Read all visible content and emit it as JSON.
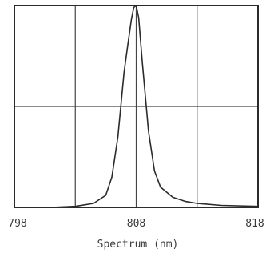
{
  "chart_data": {
    "type": "line",
    "title": "",
    "xlabel": "Spectrum (nm)",
    "ylabel": "",
    "xlim": [
      798,
      818
    ],
    "ylim": [
      0,
      1
    ],
    "x_ticks": [
      798,
      808,
      818
    ],
    "x_tick_labels": [
      "798",
      "808",
      "818"
    ],
    "grid": true,
    "series": [
      {
        "x": [
          798,
          801,
          803,
          804.5,
          805.5,
          806,
          806.5,
          807,
          807.3,
          807.6,
          807.8,
          808,
          808.2,
          808.5,
          809,
          809.5,
          810,
          811,
          812,
          813,
          815,
          818
        ],
        "y": [
          0,
          0,
          0.005,
          0.02,
          0.06,
          0.15,
          0.35,
          0.67,
          0.8,
          0.93,
          0.99,
          1.0,
          0.94,
          0.72,
          0.38,
          0.18,
          0.1,
          0.05,
          0.03,
          0.02,
          0.01,
          0.005
        ]
      }
    ]
  },
  "colors": {
    "frame": "#2b2b2b",
    "grid": "#444444",
    "line": "#2b2b2b",
    "text": "#3a3a3a"
  }
}
